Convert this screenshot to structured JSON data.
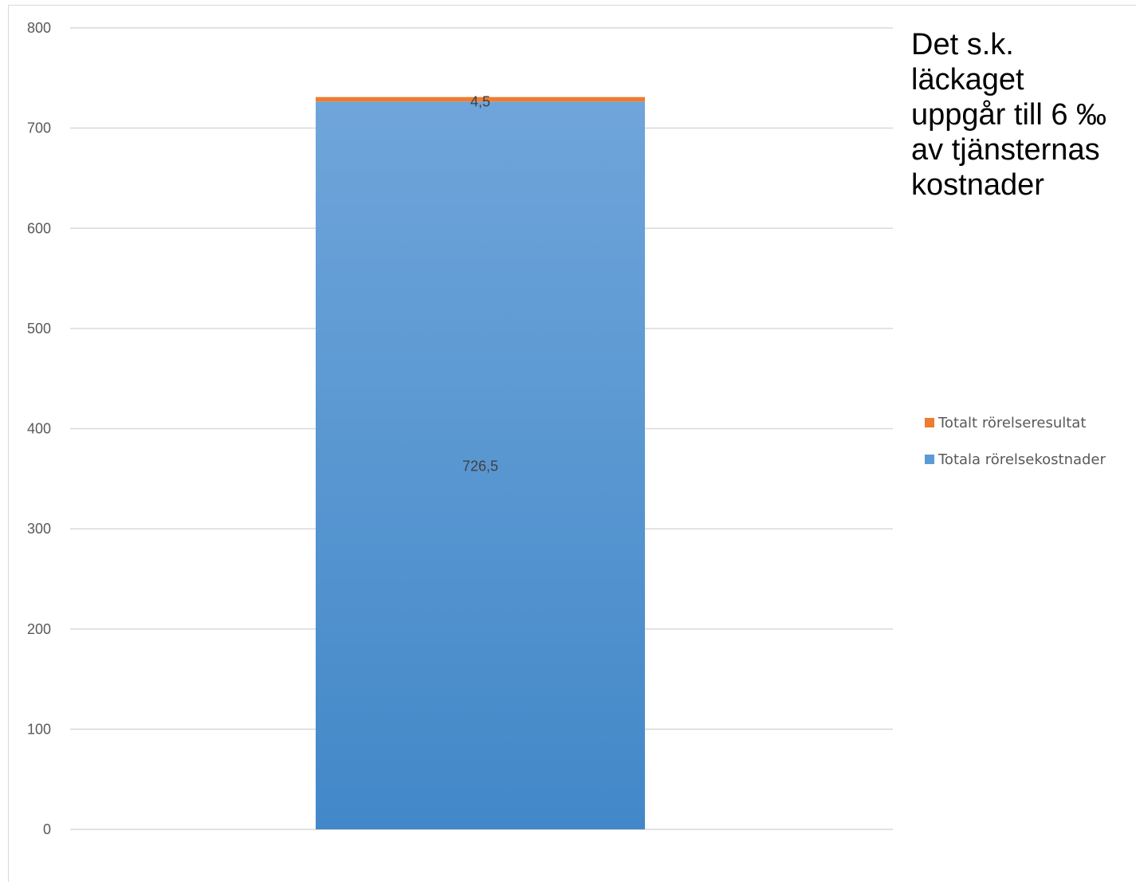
{
  "annotation": {
    "text": "Det s.k.\nläckaget\nuppgår till 6 ‰\nav tjänsternas\nkostnader"
  },
  "colors": {
    "totala_rorelsekostnader": "#5b9bd5",
    "totalt_rorelseresultat": "#ed7d31",
    "gridline": "#d9d9d9",
    "tick_text": "#595959"
  },
  "legend": [
    {
      "label": "Totalt rörelseresultat",
      "color": "#ed7d31"
    },
    {
      "label": "Totala rörelsekostnader",
      "color": "#5b9bd5"
    }
  ],
  "chart_data": {
    "type": "bar",
    "stacked": true,
    "categories": [
      ""
    ],
    "series": [
      {
        "name": "Totala rörelsekostnader",
        "values": [
          726.5
        ],
        "labels": [
          "726,5"
        ],
        "color": "#5b9bd5"
      },
      {
        "name": "Totalt rörelseresultat",
        "values": [
          4.5
        ],
        "labels": [
          "4,5"
        ],
        "color": "#ed7d31"
      }
    ],
    "ylim": [
      0,
      800
    ],
    "yticks": [
      0,
      100,
      200,
      300,
      400,
      500,
      600,
      700,
      800
    ],
    "ytick_labels": [
      "0",
      "100",
      "200",
      "300",
      "400",
      "500",
      "600",
      "700",
      "800"
    ],
    "grid": true,
    "legend_position": "right"
  }
}
